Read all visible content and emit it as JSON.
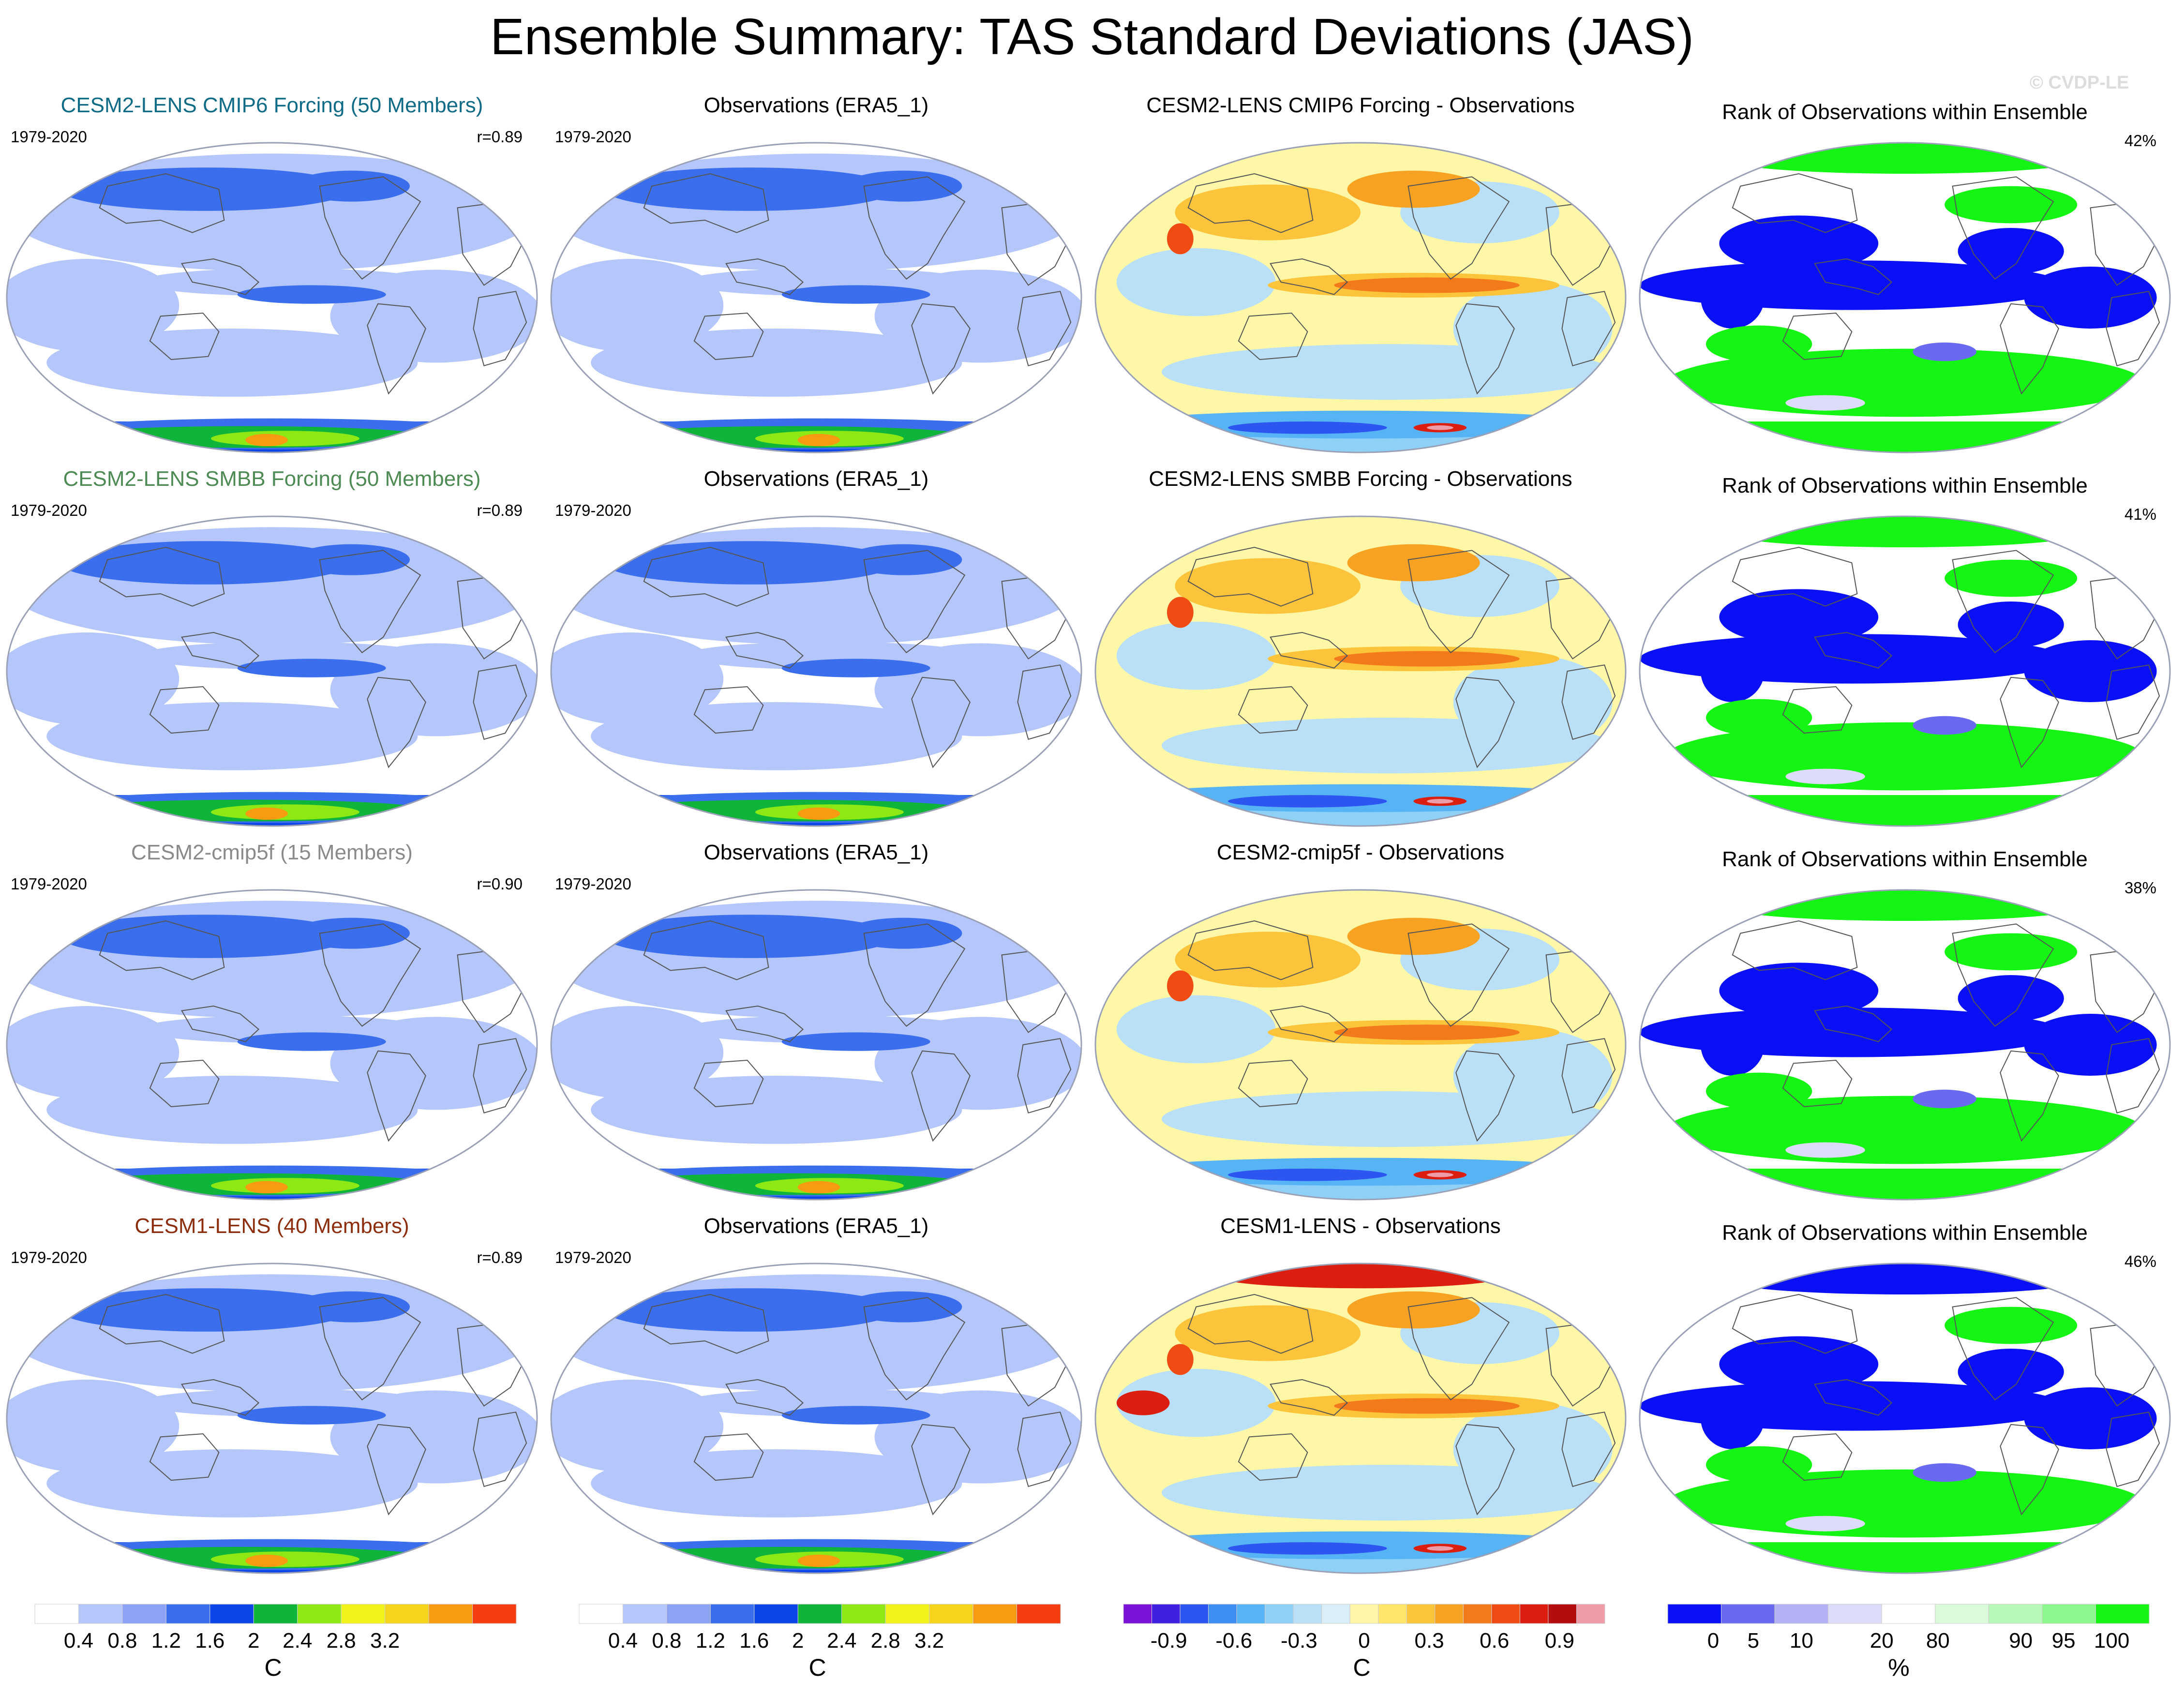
{
  "title": "Ensemble Summary: TAS Standard Deviations (JAS)",
  "watermark": "© CVDP-LE",
  "years": "1979-2020",
  "colors": {
    "cesm2_cmip6": "#0f6b86",
    "cesm2_smbb": "#4d8a54",
    "cesm2_cmip5f": "#8a8a8a",
    "cesm1": "#8c2d0e"
  },
  "rows": [
    {
      "model_title": "CESM2-LENS CMIP6 Forcing (50 Members)",
      "model_color": "#0f6b86",
      "correlation": "r=0.89",
      "obs_title": "Observations (ERA5_1)",
      "diff_title": "CESM2-LENS CMIP6 Forcing - Observations",
      "rank_title": "Rank of Observations within Ensemble",
      "rank_pct": "42%"
    },
    {
      "model_title": "CESM2-LENS SMBB Forcing (50 Members)",
      "model_color": "#4d8a54",
      "correlation": "r=0.89",
      "obs_title": "Observations (ERA5_1)",
      "diff_title": "CESM2-LENS SMBB Forcing - Observations",
      "rank_title": "Rank of Observations within Ensemble",
      "rank_pct": "41%"
    },
    {
      "model_title": "CESM2-cmip5f (15 Members)",
      "model_color": "#8a8a8a",
      "correlation": "r=0.90",
      "obs_title": "Observations (ERA5_1)",
      "diff_title": "CESM2-cmip5f - Observations",
      "rank_title": "Rank of Observations within Ensemble",
      "rank_pct": "38%"
    },
    {
      "model_title": "CESM1-LENS (40 Members)",
      "model_color": "#8c2d0e",
      "correlation": "r=0.89",
      "obs_title": "Observations (ERA5_1)",
      "diff_title": "CESM1-LENS - Observations",
      "rank_title": "Rank of Observations within Ensemble",
      "rank_pct": "46%"
    }
  ],
  "colorbars": [
    {
      "name": "std-dev-model",
      "unit": "C",
      "labels": [
        "0.4",
        "0.8",
        "1.2",
        "1.6",
        "2",
        "2.4",
        "2.8",
        "3.2"
      ],
      "colors": [
        "#ffffff",
        "#b4c6fa",
        "#8ca2f5",
        "#3a6eed",
        "#0d46e8",
        "#0fb43a",
        "#8ee814",
        "#f0f219",
        "#f5d41c",
        "#f89a12",
        "#f53d10"
      ]
    },
    {
      "name": "std-dev-obs",
      "unit": "C",
      "labels": [
        "0.4",
        "0.8",
        "1.2",
        "1.6",
        "2",
        "2.4",
        "2.8",
        "3.2"
      ],
      "colors": [
        "#ffffff",
        "#b4c6fa",
        "#8ca2f5",
        "#3a6eed",
        "#0d46e8",
        "#0fb43a",
        "#8ee814",
        "#f0f219",
        "#f5d41c",
        "#f89a12",
        "#f53d10"
      ]
    },
    {
      "name": "difference",
      "unit": "C",
      "labels": [
        "-0.9",
        "-0.6",
        "-0.3",
        "0",
        "0.3",
        "0.6",
        "0.9"
      ],
      "colors": [
        "#7a12d8",
        "#3f1fe2",
        "#2d55ef",
        "#3e8ef3",
        "#56b4f5",
        "#8fd0f7",
        "#b9e0f6",
        "#d9eef7",
        "#fff7a8",
        "#ffe56a",
        "#fcc43a",
        "#f7a222",
        "#f37a1a",
        "#ef4b13",
        "#dc1e10",
        "#b30d10",
        "#ee9ca8"
      ]
    },
    {
      "name": "rank",
      "unit": "%",
      "labels": [
        "0",
        "5",
        "10",
        "20",
        "80",
        "90",
        "95",
        "100"
      ],
      "colors": [
        "#0a10f5",
        "#6a6af0",
        "#b2b2f5",
        "#dcdcfa",
        "#ffffff",
        "#dcfadc",
        "#b8f8b8",
        "#8cf78c",
        "#14f514"
      ]
    }
  ]
}
